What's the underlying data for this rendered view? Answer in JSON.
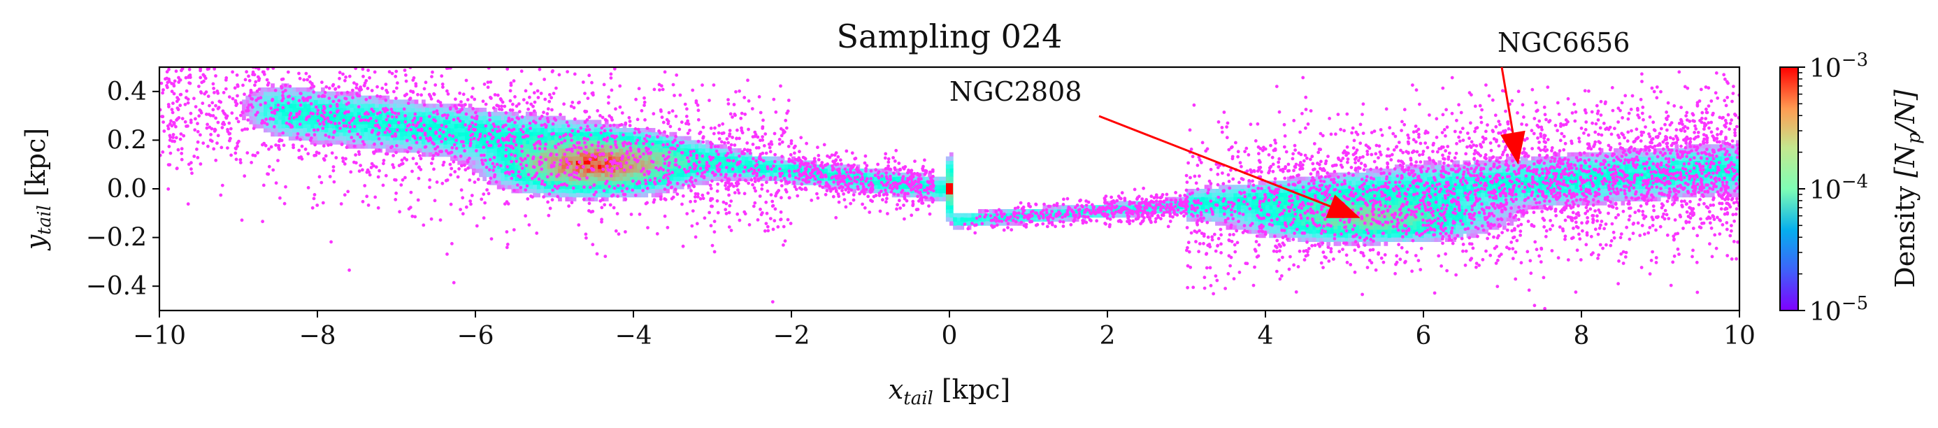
{
  "chart_data": {
    "type": "heatmap",
    "title": "Sampling 024",
    "xlabel": "x",
    "xlabel_sub": "tail",
    "xlabel_unit": "[kpc]",
    "ylabel": "y",
    "ylabel_sub": "tail",
    "ylabel_unit": "[kpc]",
    "xlim": [
      -10,
      10
    ],
    "ylim": [
      -0.5,
      0.5
    ],
    "x_ticks": [
      -10,
      -8,
      -6,
      -4,
      -2,
      0,
      2,
      4,
      6,
      8,
      10
    ],
    "x_tick_labels": [
      "−10",
      "−8",
      "−6",
      "−4",
      "−2",
      "0",
      "2",
      "4",
      "6",
      "8",
      "10"
    ],
    "y_ticks": [
      0.4,
      0.2,
      0.0,
      -0.2,
      -0.4
    ],
    "y_tick_labels": [
      "0.4",
      "0.2",
      "0.0",
      "−0.2",
      "−0.4"
    ],
    "grid": false,
    "colormap": "rainbow",
    "colorbar": {
      "label_prefix": "Density",
      "label_math": "[N",
      "label_sub": "p",
      "label_end": "/N]",
      "scale": "log",
      "range": [
        1e-05,
        0.001
      ],
      "ticks": [
        {
          "value": 0.001,
          "base": "10",
          "exp": "−3"
        },
        {
          "value": 0.0001,
          "base": "10",
          "exp": "−4"
        },
        {
          "value": 1e-05,
          "base": "10",
          "exp": "−5"
        }
      ]
    },
    "density_peaks": [
      {
        "x": -4.5,
        "y": 0.1,
        "density": 0.0008
      },
      {
        "x": 5.3,
        "y": -0.12,
        "density": 0.0003
      }
    ],
    "annotations": [
      {
        "text": "NGC2808",
        "point_x": 5.2,
        "point_y": -0.12
      },
      {
        "text": "NGC6656",
        "point_x": 7.2,
        "point_y": 0.1
      }
    ],
    "center_marker": {
      "x": 0.0,
      "y": 0.0,
      "color": "#ff0000"
    }
  },
  "colors": {
    "accent": "#ff0000",
    "arrow": "#ff0000",
    "low": "#7f00ff",
    "high": "#ff0000"
  }
}
